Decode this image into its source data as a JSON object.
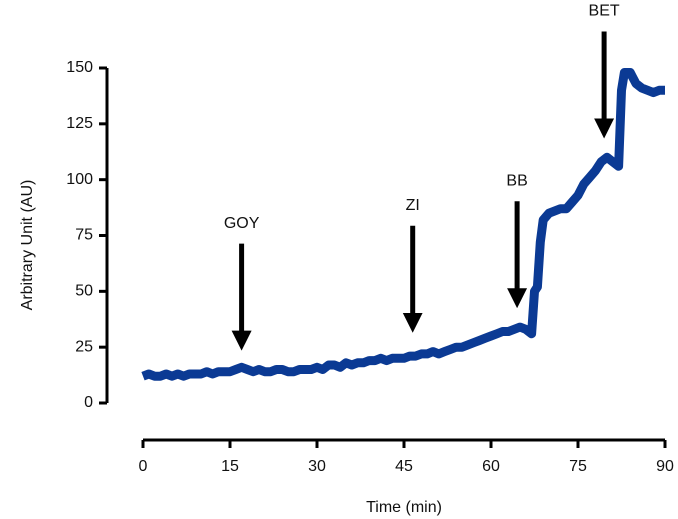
{
  "chart_data": {
    "type": "line",
    "x_label": "Time (min)",
    "y_label": "Arbitrary Unit (AU)",
    "xlim": [
      0,
      90
    ],
    "xticks": [
      0,
      15,
      30,
      45,
      60,
      75,
      90
    ],
    "ylim": [
      0,
      150
    ],
    "yticks": [
      0,
      25,
      50,
      75,
      100,
      125,
      150
    ],
    "x": [
      0,
      1,
      2,
      3,
      4,
      5,
      6,
      7,
      8,
      9,
      10,
      11,
      12,
      13,
      14,
      15,
      16,
      17,
      18,
      19,
      20,
      21,
      22,
      23,
      24,
      25,
      26,
      27,
      28,
      29,
      30,
      31,
      32,
      33,
      34,
      35,
      36,
      37,
      38,
      39,
      40,
      41,
      42,
      43,
      44,
      45,
      46,
      47,
      48,
      49,
      50,
      51,
      52,
      53,
      54,
      55,
      56,
      57,
      58,
      59,
      60,
      61,
      62,
      63,
      64,
      65,
      66,
      67,
      67.5,
      68,
      68.5,
      69,
      70,
      71,
      72,
      73,
      74,
      75,
      76,
      77,
      78,
      79,
      80,
      81,
      82,
      82.5,
      83,
      84,
      85,
      86,
      87,
      88,
      89,
      90
    ],
    "series": [
      {
        "color": "#0b3a94",
        "values": [
          12,
          13,
          12,
          12,
          13,
          12,
          13,
          12,
          13,
          13,
          13,
          14,
          13,
          14,
          14,
          14,
          15,
          16,
          15,
          14,
          15,
          14,
          14,
          15,
          15,
          14,
          14,
          15,
          15,
          15,
          16,
          15,
          17,
          17,
          16,
          18,
          17,
          18,
          18,
          19,
          19,
          20,
          19,
          20,
          20,
          20,
          21,
          21,
          22,
          22,
          23,
          22,
          23,
          24,
          25,
          25,
          26,
          27,
          28,
          29,
          30,
          31,
          32,
          32,
          33,
          34,
          33,
          31,
          50,
          52,
          72,
          82,
          85,
          86,
          87,
          87,
          90,
          93,
          98,
          101,
          104,
          108,
          110,
          108,
          106,
          140,
          148,
          148,
          143,
          141,
          140,
          139,
          140,
          140
        ]
      }
    ],
    "annotations": [
      {
        "text": "GOY",
        "x": 17,
        "y": 23
      },
      {
        "text": "ZI",
        "x": 46.5,
        "y": 31
      },
      {
        "text": "BB",
        "x": 64.5,
        "y": 42
      },
      {
        "text": "BET",
        "x": 79.5,
        "y": 118
      }
    ]
  }
}
